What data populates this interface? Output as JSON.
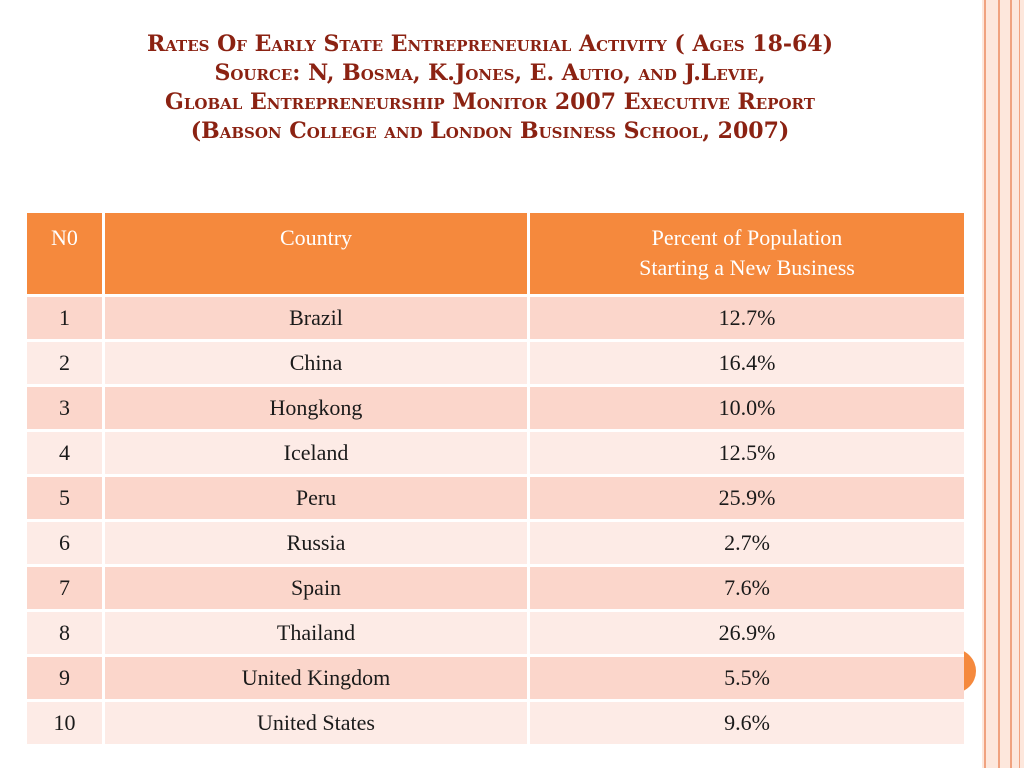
{
  "title": {
    "line1": "Rates Of Early State Entrepreneurial  Activity ( Ages 18-64)",
    "line2": "Source:  N, Bosma, K.Jones, E. Autio, and J.Levie,",
    "line3": "Global Entrepreneurship Monitor 2007 Executive Report",
    "line4": "(Babson College and London Business School, 2007)"
  },
  "table": {
    "headers": {
      "no": "N0",
      "country": "Country",
      "percent_line1": "Percent  of  Population",
      "percent_line2": "Starting a New Business"
    },
    "rows": [
      {
        "no": "1",
        "country": "Brazil",
        "percent": "12.7%"
      },
      {
        "no": "2",
        "country": "China",
        "percent": "16.4%"
      },
      {
        "no": "3",
        "country": "Hongkong",
        "percent": "10.0%"
      },
      {
        "no": "4",
        "country": "Iceland",
        "percent": "12.5%"
      },
      {
        "no": "5",
        "country": "Peru",
        "percent": "25.9%"
      },
      {
        "no": "6",
        "country": "Russia",
        "percent": "2.7%"
      },
      {
        "no": "7",
        "country": "Spain",
        "percent": "7.6%"
      },
      {
        "no": "8",
        "country": "Thailand",
        "percent": "26.9%"
      },
      {
        "no": "9",
        "country": "United Kingdom",
        "percent": "5.5%"
      },
      {
        "no": "10",
        "country": "United States",
        "percent": "9.6%"
      }
    ]
  },
  "colors": {
    "title": "#8b2212",
    "header_bg": "#f5893d",
    "row_odd": "#fbd6cb",
    "row_even": "#fdebe6",
    "accent_stripe": "#f0a27f"
  }
}
